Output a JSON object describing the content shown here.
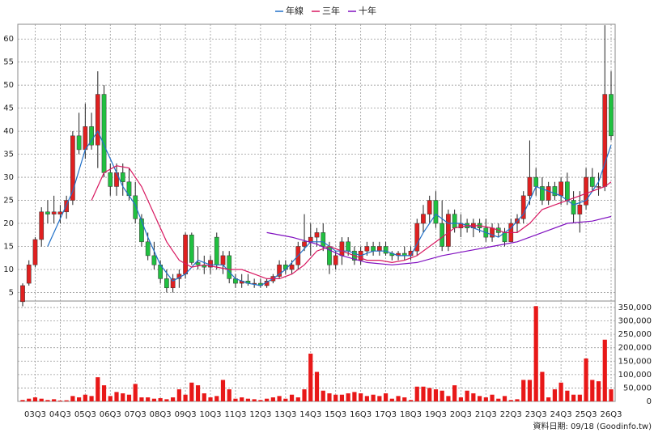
{
  "chart_data": {
    "type": "candlestick",
    "categories": [
      null,
      null,
      "03Q3",
      null,
      null,
      null,
      "04Q3",
      null,
      null,
      null,
      "05Q3",
      null,
      null,
      null,
      "06Q3",
      null,
      null,
      null,
      "07Q3",
      null,
      null,
      null,
      "08Q3",
      null,
      null,
      null,
      "09Q3",
      null,
      null,
      null,
      "10Q3",
      null,
      null,
      null,
      "11Q3",
      null,
      null,
      null,
      "12Q3",
      null,
      null,
      null,
      "13Q3",
      null,
      null,
      null,
      "14Q3",
      null,
      null,
      null,
      "15Q3",
      null,
      null,
      null,
      "16Q3",
      null,
      null,
      null,
      "17Q3",
      null,
      null,
      null,
      "18Q3",
      null,
      null,
      null,
      "19Q3",
      null,
      null,
      null,
      "20Q3",
      null,
      null,
      null,
      "21Q3",
      null,
      null,
      null,
      "22Q3",
      null,
      null,
      null,
      "23Q3",
      null,
      null,
      null,
      "24Q3",
      null,
      null,
      null,
      "25Q3",
      null,
      null,
      null,
      "26Q3"
    ],
    "open": [
      3,
      7,
      11,
      16.5,
      22.5,
      22,
      22,
      22.5,
      25,
      39,
      36,
      41,
      37,
      48,
      31,
      28,
      31,
      29,
      26,
      21,
      16,
      13,
      11,
      8,
      6,
      8,
      9,
      17.5,
      11.5,
      11,
      10.5,
      17,
      11,
      13,
      8,
      7,
      7.5,
      7,
      7,
      6.5,
      7.5,
      8.5,
      11,
      10,
      11,
      15,
      16,
      17,
      18,
      15,
      11,
      13,
      16,
      14,
      12,
      14,
      15,
      14,
      15,
      13.5,
      13,
      13.5,
      13,
      14,
      20,
      22,
      25,
      20,
      15,
      22,
      19,
      20,
      19,
      20,
      19,
      17,
      19,
      18,
      16,
      20,
      21,
      26,
      30,
      28,
      25,
      28,
      26,
      29,
      25,
      22,
      24,
      30,
      28,
      28,
      48
    ],
    "high": [
      7,
      12,
      17,
      23.5,
      25,
      26,
      24,
      26,
      40,
      44,
      46,
      44,
      53,
      50,
      33,
      33,
      33,
      32,
      29,
      22,
      18,
      16,
      12,
      10,
      9,
      10,
      18,
      18,
      15,
      13,
      13,
      18,
      14,
      14,
      9,
      9,
      9,
      8,
      8,
      8,
      9,
      12,
      12,
      12,
      16,
      22,
      20,
      19,
      20,
      16,
      14,
      17,
      17,
      15,
      15,
      16,
      16,
      16,
      16,
      14,
      14,
      15,
      15,
      21,
      24,
      26,
      27,
      25,
      23,
      23,
      22,
      21,
      21,
      21,
      21,
      20,
      20,
      19,
      21,
      22,
      27,
      38,
      32,
      30,
      29,
      29,
      30,
      31,
      27,
      27,
      32,
      32,
      31,
      63,
      53
    ],
    "low": [
      2,
      6.5,
      10.5,
      15,
      20,
      20,
      20,
      21,
      24,
      35,
      34,
      36,
      32,
      30,
      26,
      26,
      26,
      25,
      20,
      15,
      12,
      10,
      7,
      5,
      5,
      6,
      8,
      11,
      10,
      9,
      9,
      10,
      9,
      7,
      6,
      6,
      6.5,
      6,
      6,
      6,
      7,
      8,
      9,
      9,
      10,
      14,
      13,
      15,
      14,
      9,
      10,
      11,
      13,
      11,
      11,
      13,
      13,
      13,
      13,
      12,
      12,
      12,
      12,
      13,
      18,
      20,
      19,
      14,
      14,
      18,
      17,
      18,
      17,
      18,
      16,
      16,
      17,
      15,
      16,
      18,
      20,
      24,
      26,
      24,
      24,
      25,
      24,
      24,
      20,
      18,
      23,
      27,
      26,
      27,
      38
    ],
    "close": [
      6.5,
      11,
      16.5,
      22.5,
      22,
      22.5,
      22.5,
      25,
      39,
      36,
      41,
      37,
      48,
      31,
      28,
      31,
      29,
      26,
      21,
      16,
      13,
      11,
      8,
      6,
      8,
      9,
      17.5,
      11.5,
      11,
      10.5,
      12,
      11,
      13,
      8,
      7,
      7.5,
      7,
      7,
      6.5,
      7.5,
      8.5,
      11,
      10,
      11,
      15,
      16,
      17,
      18,
      15,
      11,
      13,
      16,
      14,
      12,
      14,
      15,
      14,
      15,
      13.5,
      13,
      13.5,
      13,
      14,
      20,
      22,
      25,
      20,
      15,
      22,
      19,
      20,
      19,
      20,
      19,
      17,
      19,
      18,
      16,
      20,
      21,
      26,
      30,
      28,
      25,
      28,
      26,
      29,
      25,
      22,
      24,
      30,
      28,
      28,
      48,
      39
    ],
    "volume": [
      5000,
      10000,
      15000,
      10000,
      5000,
      8000,
      3000,
      4000,
      20000,
      15000,
      25000,
      20000,
      90000,
      60000,
      20000,
      35000,
      30000,
      25000,
      65000,
      15000,
      15000,
      10000,
      12000,
      8000,
      15000,
      45000,
      25000,
      70000,
      60000,
      30000,
      15000,
      20000,
      80000,
      45000,
      10000,
      15000,
      10000,
      8000,
      5000,
      10000,
      15000,
      20000,
      10000,
      25000,
      15000,
      45000,
      178000,
      110000,
      40000,
      30000,
      25000,
      25000,
      30000,
      35000,
      30000,
      20000,
      25000,
      20000,
      30000,
      10000,
      20000,
      15000,
      5000,
      55000,
      55000,
      50000,
      45000,
      40000,
      20000,
      60000,
      15000,
      40000,
      30000,
      20000,
      15000,
      25000,
      10000,
      20000,
      5000,
      8000,
      80000,
      80000,
      355000,
      110000,
      15000,
      45000,
      70000,
      40000,
      25000,
      25000,
      160000,
      80000,
      75000,
      230000,
      45000
    ],
    "up_color": "#e02020",
    "down_color": "#20c040",
    "volume_color": "#e81818",
    "lines": [
      {
        "name": "年線",
        "color": "#2070c8",
        "x": [
          4,
          6,
          8,
          10,
          12,
          14,
          16,
          18,
          20,
          22,
          24,
          26,
          28,
          30,
          32,
          34,
          36,
          38,
          40,
          42,
          44,
          46,
          48,
          50,
          52,
          54,
          56,
          58,
          60,
          62,
          64,
          66,
          68,
          70,
          72,
          74,
          76,
          78,
          80,
          82,
          84,
          86,
          88,
          90,
          92,
          94
        ],
        "values": [
          15,
          21,
          27,
          36,
          40,
          34,
          28,
          24,
          17,
          11,
          7.5,
          9,
          12,
          11,
          11,
          8,
          7,
          6.5,
          8,
          10,
          13,
          16,
          16,
          14,
          14,
          13,
          14,
          14,
          13,
          13,
          18,
          22,
          20,
          20,
          19,
          18,
          17,
          19,
          22,
          28,
          27,
          26,
          24,
          25,
          29,
          37
        ]
      },
      {
        "name": "三年",
        "color": "#d81860",
        "x": [
          11,
          13,
          15,
          17,
          19,
          21,
          23,
          25,
          27,
          29,
          31,
          33,
          35,
          37,
          39,
          41,
          43,
          45,
          47,
          49,
          51,
          53,
          55,
          57,
          59,
          61,
          63,
          65,
          67,
          69,
          71,
          73,
          75,
          77,
          79,
          81,
          83,
          85,
          87,
          89,
          91,
          93,
          94
        ],
        "values": [
          25,
          31,
          32.5,
          32,
          28,
          22,
          16,
          12,
          10.5,
          11,
          10.5,
          10,
          10,
          9,
          8,
          8,
          9,
          11,
          14,
          15,
          14,
          13,
          12,
          12,
          11.5,
          12,
          13,
          15,
          17,
          19,
          19.5,
          19.5,
          19,
          18,
          18,
          20,
          23,
          24,
          25,
          26,
          27,
          28,
          29
        ]
      },
      {
        "name": "十年",
        "color": "#8010c0",
        "x": [
          39,
          43,
          47,
          51,
          55,
          59,
          63,
          67,
          71,
          75,
          79,
          83,
          87,
          91,
          94
        ],
        "values": [
          18,
          17,
          15.5,
          13,
          11.5,
          11,
          11.5,
          13,
          14,
          15,
          16,
          18,
          20,
          20.5,
          21.5
        ]
      }
    ],
    "ylim": [
      3.5,
      63.2
    ],
    "yticks": [
      5,
      10,
      15,
      20,
      25,
      30,
      35,
      40,
      45,
      50,
      55,
      60
    ],
    "y2lim": [
      0,
      374000
    ],
    "y2ticks": [
      0,
      {
        "value": 50000,
        "label": "50,000"
      },
      {
        "value": 100000,
        "label": "100,000"
      },
      {
        "value": 150000,
        "label": "150,000"
      },
      {
        "value": 200000,
        "label": "200,000"
      },
      {
        "value": 250000,
        "label": "250,000"
      },
      {
        "value": 300000,
        "label": "300,000"
      },
      {
        "value": 350000,
        "label": "350,000"
      }
    ],
    "grid": true,
    "footer": "資料日期: 09/18 (Goodinfo.tw)"
  }
}
